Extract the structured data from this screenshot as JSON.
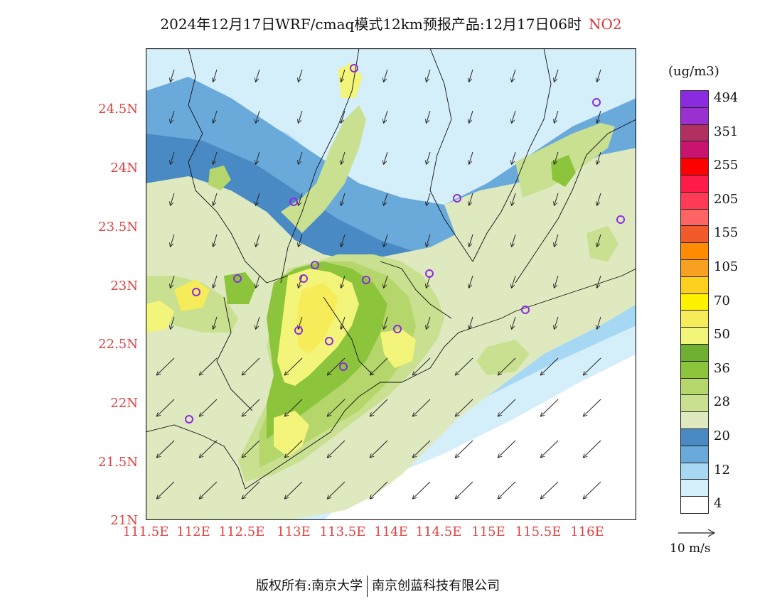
{
  "title": {
    "text": "2024年12月17日WRF/cmaq模式12km预报产品:12月17日06时",
    "species": "NO2"
  },
  "map": {
    "lat_ticks": [
      "24.5N",
      "24N",
      "23.5N",
      "23N",
      "22.5N",
      "22N",
      "21.5N",
      "21N"
    ],
    "lon_ticks": [
      "111.5E",
      "112E",
      "112.5E",
      "113E",
      "113.5E",
      "114E",
      "114.5E",
      "115E",
      "115.5E",
      "116E"
    ],
    "lon_range": [
      111.5,
      116.6
    ],
    "lat_range": [
      21.0,
      25.0
    ]
  },
  "legend": {
    "unit": "(ug/m3)",
    "levels": [
      {
        "label": "494",
        "color": "#8a2be2"
      },
      {
        "label": "",
        "color": "#9b30d0"
      },
      {
        "label": "351",
        "color": "#b03060"
      },
      {
        "label": "",
        "color": "#c8146e"
      },
      {
        "label": "255",
        "color": "#ff0000"
      },
      {
        "label": "",
        "color": "#ff1a4a"
      },
      {
        "label": "205",
        "color": "#ff3a55"
      },
      {
        "label": "",
        "color": "#ff6464"
      },
      {
        "label": "155",
        "color": "#f25a2a"
      },
      {
        "label": "",
        "color": "#ff8c00"
      },
      {
        "label": "105",
        "color": "#f8a020"
      },
      {
        "label": "",
        "color": "#fdd020"
      },
      {
        "label": "70",
        "color": "#fff200"
      },
      {
        "label": "",
        "color": "#f6ec5a"
      },
      {
        "label": "50",
        "color": "#f2f57a"
      },
      {
        "label": "",
        "color": "#70b030"
      },
      {
        "label": "36",
        "color": "#8cc43c"
      },
      {
        "label": "",
        "color": "#b4d66a"
      },
      {
        "label": "28",
        "color": "#c8e090"
      },
      {
        "label": "",
        "color": "#dfe9c0"
      },
      {
        "label": "20",
        "color": "#4a8ac4"
      },
      {
        "label": "",
        "color": "#6aaadb"
      },
      {
        "label": "12",
        "color": "#a6d8f4"
      },
      {
        "label": "",
        "color": "#d4eefa"
      },
      {
        "label": "4",
        "color": "#ffffff"
      }
    ]
  },
  "vector_reference": {
    "label": "10 m/s"
  },
  "footer": {
    "left": "版权所有:南京大学",
    "right": "南京创蓝科技有限公司"
  }
}
